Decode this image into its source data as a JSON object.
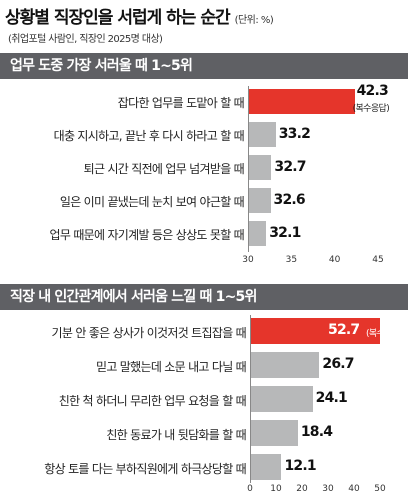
{
  "header": {
    "title": "상황별 직장인을 서럽게 하는 순간",
    "unit": "(단위: %)",
    "source": "(취업포털 사람인, 직장인 2025명 대상)"
  },
  "colors": {
    "highlight": "#e5352b",
    "bar": "#b7b8b9",
    "header_bg": "#5f6064"
  },
  "chart_data": [
    {
      "type": "bar",
      "orientation": "horizontal",
      "title": "업무 도중 가장 서러울 때 1~5위",
      "categories": [
        "잡다한 업무를 도맡아 할 때",
        "대충 지시하고, 끝난 후 다시 하라고 할 때",
        "퇴근 시간 직전에 업무 넘겨받을 때",
        "일은 이미 끝냈는데 눈치 보여 야근할 때",
        "업무 때문에 자기계발 등은 상상도 못할 때"
      ],
      "values": [
        42.3,
        33.2,
        32.7,
        32.6,
        32.1
      ],
      "value_labels": [
        "42.3",
        "33.2",
        "32.7",
        "32.6",
        "32.1"
      ],
      "annotation": "(복수응답)",
      "xlim": [
        30,
        45
      ],
      "ticks": [
        30,
        35,
        40,
        45
      ],
      "tick_labels": [
        "30",
        "35",
        "40",
        "45"
      ]
    },
    {
      "type": "bar",
      "orientation": "horizontal",
      "title": "직장 내 인간관계에서 서러움 느낄 때 1~5위",
      "categories": [
        "기분 안 좋은 상사가 이것저것 트집잡을 때",
        "믿고 말했는데 소문 내고 다닐 때",
        "친한 척 하더니 무리한 업무 요청을 할 때",
        "친한 동료가 내 뒷담화를 할 때",
        "항상 토를 다는 부하직원에게 하극상당할 때"
      ],
      "values": [
        52.7,
        26.7,
        24.1,
        18.4,
        12.1
      ],
      "value_labels": [
        "52.7",
        "26.7",
        "24.1",
        "18.4",
        "12.1"
      ],
      "annotation": "(복수응답)",
      "xlim": [
        0,
        50
      ],
      "ticks": [
        0,
        10,
        20,
        30,
        40,
        50
      ],
      "tick_labels": [
        "0",
        "10",
        "20",
        "30",
        "40",
        "50"
      ]
    }
  ]
}
